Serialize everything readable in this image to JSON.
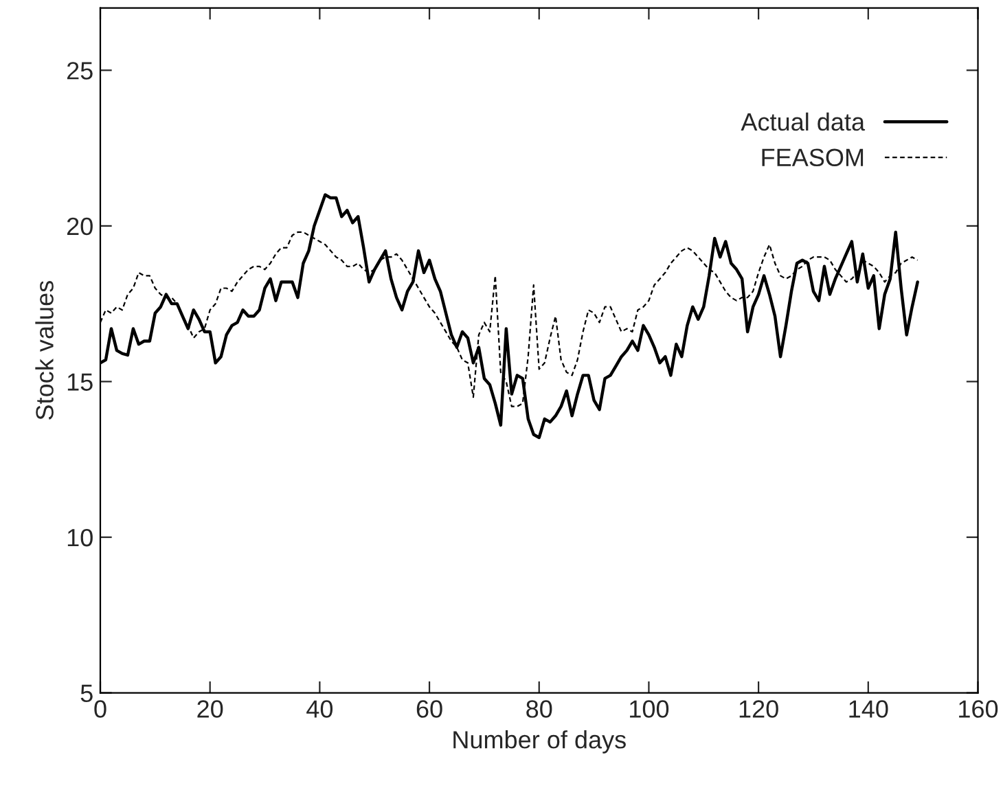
{
  "chart_data": {
    "type": "line",
    "xlabel": "Number of days",
    "ylabel": "Stock values",
    "x": [
      0,
      1,
      2,
      3,
      4,
      5,
      6,
      7,
      8,
      9,
      10,
      11,
      12,
      13,
      14,
      15,
      16,
      17,
      18,
      19,
      20,
      21,
      22,
      23,
      24,
      25,
      26,
      27,
      28,
      29,
      30,
      31,
      32,
      33,
      34,
      35,
      36,
      37,
      38,
      39,
      40,
      41,
      42,
      43,
      44,
      45,
      46,
      47,
      48,
      49,
      50,
      51,
      52,
      53,
      54,
      55,
      56,
      57,
      58,
      59,
      60,
      61,
      62,
      63,
      64,
      65,
      66,
      67,
      68,
      69,
      70,
      71,
      72,
      73,
      74,
      75,
      76,
      77,
      78,
      79,
      80,
      81,
      82,
      83,
      84,
      85,
      86,
      87,
      88,
      89,
      90,
      91,
      92,
      93,
      94,
      95,
      96,
      97,
      98,
      99,
      100,
      101,
      102,
      103,
      104,
      105,
      106,
      107,
      108,
      109,
      110,
      111,
      112,
      113,
      114,
      115,
      116,
      117,
      118,
      119,
      120,
      121,
      122,
      123,
      124,
      125,
      126,
      127,
      128,
      129,
      130,
      131,
      132,
      133,
      134,
      135,
      136,
      137,
      138,
      139,
      140,
      141,
      142,
      143,
      144,
      145,
      146,
      147,
      148,
      149
    ],
    "series": [
      {
        "name": "Actual data",
        "color": "#000000",
        "line_style": "solid",
        "values": [
          15.6,
          15.7,
          16.7,
          16.0,
          15.9,
          15.85,
          16.7,
          16.2,
          16.3,
          16.3,
          17.2,
          17.4,
          17.8,
          17.5,
          17.5,
          17.1,
          16.7,
          17.3,
          17.0,
          16.6,
          16.6,
          15.6,
          15.8,
          16.5,
          16.8,
          16.9,
          17.3,
          17.1,
          17.1,
          17.3,
          18.0,
          18.3,
          17.6,
          18.2,
          18.2,
          18.2,
          17.7,
          18.8,
          19.2,
          20.0,
          20.5,
          21.0,
          20.9,
          20.9,
          20.3,
          20.5,
          20.1,
          20.3,
          19.3,
          18.2,
          18.6,
          18.9,
          19.2,
          18.3,
          17.7,
          17.3,
          17.9,
          18.2,
          19.2,
          18.5,
          18.9,
          18.3,
          17.9,
          17.2,
          16.5,
          16.1,
          16.6,
          16.4,
          15.6,
          16.1,
          15.1,
          14.9,
          14.3,
          13.6,
          16.7,
          14.6,
          15.2,
          15.1,
          13.8,
          13.3,
          13.2,
          13.8,
          13.7,
          13.9,
          14.2,
          14.7,
          13.9,
          14.6,
          15.2,
          15.2,
          14.4,
          14.1,
          15.1,
          15.2,
          15.5,
          15.8,
          16.0,
          16.3,
          16.0,
          16.8,
          16.5,
          16.1,
          15.6,
          15.8,
          15.2,
          16.2,
          15.8,
          16.8,
          17.4,
          17.0,
          17.4,
          18.4,
          19.6,
          19.0,
          19.5,
          18.8,
          18.6,
          18.3,
          16.6,
          17.4,
          17.8,
          18.4,
          17.8,
          17.1,
          15.8,
          16.8,
          17.9,
          18.8,
          18.9,
          18.8,
          17.9,
          17.6,
          18.7,
          17.8,
          18.3,
          18.7,
          19.1,
          19.5,
          18.2,
          19.1,
          18.0,
          18.4,
          16.7,
          17.8,
          18.3,
          19.8,
          18.0,
          16.5,
          17.4,
          18.2
        ]
      },
      {
        "name": "FEASOM",
        "color": "#000000",
        "line_style": "dashed",
        "values": [
          16.9,
          17.3,
          17.2,
          17.4,
          17.3,
          17.8,
          18.0,
          18.5,
          18.4,
          18.4,
          18.0,
          17.8,
          17.7,
          17.7,
          17.5,
          17.1,
          16.8,
          16.4,
          16.6,
          16.7,
          17.3,
          17.5,
          18.0,
          18.0,
          17.9,
          18.2,
          18.4,
          18.6,
          18.7,
          18.7,
          18.6,
          18.8,
          19.1,
          19.3,
          19.3,
          19.7,
          19.8,
          19.8,
          19.7,
          19.6,
          19.5,
          19.4,
          19.2,
          19.0,
          18.9,
          18.7,
          18.7,
          18.8,
          18.6,
          18.5,
          18.6,
          18.9,
          19.0,
          19.0,
          19.1,
          18.9,
          18.6,
          18.3,
          18.0,
          17.7,
          17.4,
          17.2,
          16.9,
          16.6,
          16.3,
          16.1,
          15.7,
          15.6,
          14.5,
          16.5,
          16.9,
          16.6,
          18.4,
          15.3,
          15.0,
          14.2,
          14.2,
          14.3,
          15.8,
          18.1,
          15.4,
          15.6,
          16.4,
          17.1,
          15.7,
          15.3,
          15.2,
          15.7,
          16.6,
          17.3,
          17.2,
          16.9,
          17.4,
          17.4,
          17.0,
          16.6,
          16.7,
          16.6,
          17.3,
          17.4,
          17.6,
          18.1,
          18.3,
          18.5,
          18.8,
          19.0,
          19.2,
          19.3,
          19.2,
          19.0,
          18.8,
          18.6,
          18.5,
          18.2,
          17.9,
          17.7,
          17.6,
          17.7,
          17.7,
          17.9,
          18.5,
          19.0,
          19.4,
          18.8,
          18.4,
          18.3,
          18.4,
          18.6,
          18.7,
          18.9,
          19.0,
          19.0,
          19.0,
          18.9,
          18.6,
          18.4,
          18.2,
          18.3,
          18.5,
          18.9,
          18.8,
          18.7,
          18.5,
          18.2,
          18.4,
          18.5,
          18.8,
          18.9,
          19.0,
          18.9
        ]
      }
    ],
    "xlim": [
      0,
      160
    ],
    "xticks": [
      0,
      20,
      40,
      60,
      80,
      100,
      120,
      140,
      160
    ],
    "ylim": [
      5,
      27
    ],
    "yticks": [
      5,
      10,
      15,
      20,
      25
    ],
    "grid": false,
    "legend": "top right",
    "marker": "none"
  }
}
